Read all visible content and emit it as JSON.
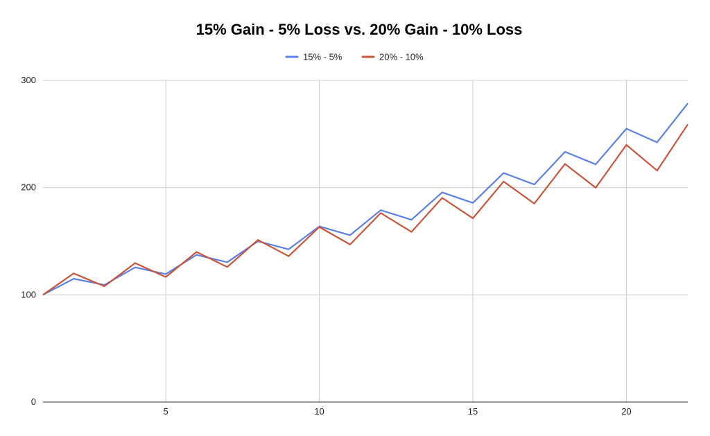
{
  "chart_data": {
    "type": "line",
    "title": "15% Gain - 5% Loss vs. 20% Gain - 10% Loss",
    "xlabel": "",
    "ylabel": "",
    "xlim": [
      1,
      22
    ],
    "ylim": [
      0,
      300
    ],
    "x_ticks": [
      5,
      10,
      15,
      20
    ],
    "y_ticks": [
      0,
      100,
      200,
      300
    ],
    "grid": true,
    "legend_position": "top-center",
    "x": [
      1,
      2,
      3,
      4,
      5,
      6,
      7,
      8,
      9,
      10,
      11,
      12,
      13,
      14,
      15,
      16,
      17,
      18,
      19,
      20,
      21,
      22
    ],
    "series": [
      {
        "name": "15% - 5%",
        "color": "#5b80e6",
        "values": [
          100,
          115,
          109.25,
          125.64,
          119.36,
          137.26,
          130.4,
          149.96,
          142.46,
          163.83,
          155.64,
          178.98,
          170.03,
          195.54,
          185.76,
          213.63,
          202.95,
          233.39,
          221.72,
          254.98,
          242.23,
          278.56
        ]
      },
      {
        "name": "20% - 10%",
        "color": "#c8553a",
        "values": [
          100,
          120,
          108,
          129.6,
          116.64,
          139.97,
          125.97,
          151.17,
          136.05,
          163.26,
          146.93,
          176.32,
          158.69,
          190.42,
          171.38,
          205.66,
          185.09,
          222.11,
          199.9,
          239.88,
          215.89,
          259.07
        ]
      }
    ]
  }
}
